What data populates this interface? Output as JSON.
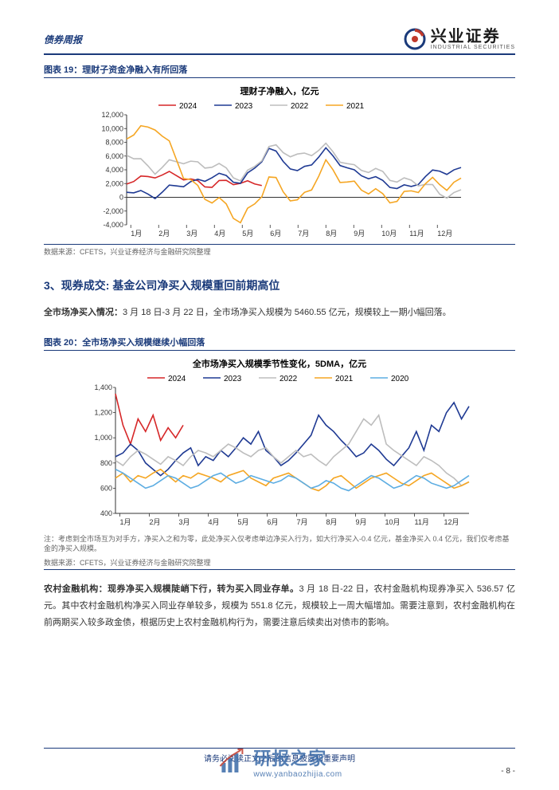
{
  "header": {
    "report_type": "债券周报",
    "logo_cn": "兴业证券",
    "logo_en": "INDUSTRIAL SECURITIES"
  },
  "chart1": {
    "type": "line",
    "figure_label": "图表 19：理财子资金净融入有所回落",
    "title": "理财子净融入，亿元",
    "title_fontsize": 11,
    "source": "数据来源：CFETS，兴业证券经济与金融研究院整理",
    "x_categories": [
      "1月",
      "2月",
      "3月",
      "4月",
      "5月",
      "6月",
      "7月",
      "8月",
      "9月",
      "10月",
      "11月",
      "12月"
    ],
    "y_ticks": [
      -4000,
      -2000,
      0,
      2000,
      4000,
      6000,
      8000,
      10000,
      12000
    ],
    "ylim": [
      -4000,
      12000
    ],
    "background_color": "#ffffff",
    "grid_color": "#d0d0d0",
    "axis_color": "#333333",
    "series": [
      {
        "name": "2024",
        "color": "#d62728",
        "line_width": 1.6,
        "data": [
          2000,
          3500,
          2800,
          1800,
          2200,
          null,
          null,
          null,
          null,
          null,
          null,
          null
        ]
      },
      {
        "name": "2023",
        "color": "#1f3a93",
        "line_width": 1.6,
        "data": [
          800,
          500,
          1800,
          3200,
          2200,
          6800,
          3800,
          6500,
          3800,
          2000,
          1500,
          4000
        ]
      },
      {
        "name": "2022",
        "color": "#bdbdbd",
        "line_width": 1.6,
        "data": [
          6200,
          4200,
          5200,
          4800,
          2600,
          7000,
          6200,
          7000,
          4500,
          3200,
          2400,
          700
        ]
      },
      {
        "name": "2021",
        "color": "#f5a623",
        "line_width": 1.6,
        "data": [
          8600,
          11000,
          3200,
          -200,
          -3400,
          2400,
          -500,
          4200,
          2000,
          -300,
          800,
          2200
        ]
      }
    ],
    "points_per_month": 4
  },
  "section3": {
    "heading": "3、现券成交: 基金公司净买入规模重回前期高位",
    "para1_bold": "全市场净买入情况：",
    "para1_rest": "3 月 18 日-3 月 22 日，全市场净买入规模为 5460.55 亿元，规模较上一期小幅回落。"
  },
  "chart2": {
    "type": "line",
    "figure_label": "图表 20：全市场净买入规模继续小幅回落",
    "title": "全市场净买入规模季节性变化，5DMA，亿元",
    "title_fontsize": 11,
    "note": "注：考虑到全市场互为对手方，净买入之和为零，此处净买入仅考虑单边净买入行为，如大行净买入-0.4 亿元，基金净买入 0.4 亿元，我们仅考虑基金的净买入规模。",
    "source": "数据来源：CFETS，兴业证券经济与金融研究院整理",
    "x_categories": [
      "1月",
      "2月",
      "3月",
      "4月",
      "5月",
      "6月",
      "7月",
      "8月",
      "9月",
      "10月",
      "11月",
      "12月"
    ],
    "y_ticks": [
      400,
      600,
      800,
      1000,
      1200,
      1400
    ],
    "ylim": [
      400,
      1400
    ],
    "background_color": "#ffffff",
    "axis_color": "#333333",
    "series": [
      {
        "name": "2024",
        "color": "#d62728",
        "line_width": 1.6,
        "data": [
          1350,
          1100,
          950,
          1150,
          1050,
          1180,
          980,
          1080,
          1000,
          1100,
          null,
          null,
          null,
          null,
          null,
          null,
          null,
          null,
          null,
          null,
          null,
          null,
          null,
          null,
          null,
          null,
          null,
          null,
          null,
          null,
          null,
          null,
          null,
          null,
          null,
          null,
          null,
          null,
          null,
          null,
          null,
          null,
          null,
          null,
          null,
          null,
          null,
          null
        ]
      },
      {
        "name": "2023",
        "color": "#1f3a93",
        "line_width": 1.6,
        "data": [
          850,
          880,
          950,
          900,
          800,
          750,
          700,
          750,
          820,
          880,
          920,
          780,
          850,
          820,
          900,
          850,
          920,
          1000,
          950,
          1050,
          900,
          850,
          780,
          820,
          880,
          950,
          1020,
          1180,
          1100,
          1050,
          980,
          920,
          850,
          880,
          950,
          900,
          830,
          780,
          850,
          920,
          1050,
          900,
          1100,
          1050,
          1200,
          1280,
          1150,
          1250
        ]
      },
      {
        "name": "2022",
        "color": "#bdbdbd",
        "line_width": 1.6,
        "data": [
          820,
          780,
          850,
          900,
          870,
          830,
          790,
          850,
          820,
          780,
          850,
          900,
          880,
          850,
          900,
          950,
          920,
          880,
          850,
          900,
          920,
          850,
          800,
          850,
          900,
          850,
          870,
          820,
          780,
          850,
          900,
          950,
          1050,
          1150,
          1100,
          1180,
          950,
          900,
          860,
          820,
          780,
          850,
          820,
          780,
          720,
          680,
          620,
          650
        ]
      },
      {
        "name": "2021",
        "color": "#f5a623",
        "line_width": 1.6,
        "data": [
          680,
          720,
          650,
          700,
          680,
          720,
          750,
          700,
          650,
          700,
          680,
          720,
          700,
          680,
          650,
          700,
          720,
          740,
          680,
          650,
          620,
          680,
          700,
          720,
          680,
          640,
          600,
          580,
          620,
          680,
          700,
          650,
          600,
          640,
          680,
          700,
          720,
          680,
          640,
          620,
          660,
          700,
          720,
          680,
          640,
          600,
          620,
          650
        ]
      },
      {
        "name": "2020",
        "color": "#5dade2",
        "line_width": 1.6,
        "data": [
          750,
          720,
          680,
          640,
          600,
          620,
          660,
          700,
          680,
          640,
          600,
          620,
          660,
          700,
          720,
          680,
          640,
          660,
          700,
          680,
          660,
          640,
          660,
          700,
          680,
          640,
          600,
          620,
          660,
          640,
          600,
          580,
          620,
          660,
          700,
          680,
          640,
          600,
          620,
          660,
          700,
          680,
          640,
          620,
          600,
          620,
          660,
          700
        ]
      }
    ],
    "points_per_month": 4
  },
  "para2": {
    "bold": "农村金融机构：现券净买入规模陡峭下行，转为买入同业存单。",
    "rest": "3 月 18 日-22 日，农村金融机构现券净买入 536.57 亿元。其中农村金融机构净买入同业存单较多，规模为 551.8 亿元，规模较上一周大幅增加。需要注意到，农村金融机构在前两期买入较多政金债，根据历史上农村金融机构行为，需要注意后续卖出对债市的影响。"
  },
  "footer": {
    "disclaimer": "请务必阅读正文之后的信息披露和重要声明",
    "page": "- 8 -"
  },
  "watermark": {
    "text": "研报之家",
    "url": "www.yanbaozhijia.com"
  }
}
